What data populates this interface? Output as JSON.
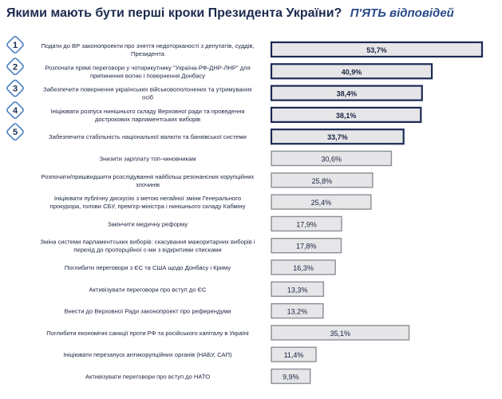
{
  "header": {
    "title": "Якими мають бути перші кроки Президента України?",
    "subtitle": "П'ЯТЬ відповідей"
  },
  "colors": {
    "bar_fill": "#e6e6e8",
    "bar_border_top": "#1b2a55",
    "bar_border": "#8a8e96",
    "badge": "#4a7fc1",
    "text": "#1a2340"
  },
  "chart_data": {
    "type": "bar",
    "orientation": "horizontal",
    "title": "Якими мають бути перші кроки Президента України?",
    "subtitle": "П'ЯТЬ відповідей",
    "categories": [
      "Подати до ВР законопроекти про зняття недоторканості з депутатів, суддів, Президента",
      "Розпочати прямі переговори у чотирикутнику \"Україна-РФ-ДНР-ЛНР\" для припинення вогню і повернення Донбасу",
      "Забезпечити повернення українських військовополонених та утримуваних осіб",
      "Ініціювати розпуск нинішнього складу Верховної ради та проведення дострокових парламентських виборів",
      "Забезпечити стабільність національної валюти та банківської системи",
      "Знизити зарплату топ-чиновникам",
      "Розпочати/пришвидшити розслідування найбільш резонансних корупційних злочинів",
      "Ініціювати публічну дискусію з метою негайної зміни Генерального прокурора, голови СБУ, прем'єр-міністра і нинішнього складу Кабміну",
      "Закінчити медичну реформу",
      "Зміна системи парламентських виборів: скасування мажоритарних виборів і перехід до пропорційної с-ми з відкритими списками",
      "Поглибити переговори з ЄС та США щодо Донбасу і Криму",
      "Активізувати переговори про вступ до ЄС",
      "Внести до Верховної Ради законопроект про референдуми",
      "Поглибити економічні санкції проти РФ та російського капіталу в Україні",
      "Ініціювати перезапуск антикорупційних органів (НАБУ, САП)",
      "Активізувати переговори про вступ до НАТО"
    ],
    "label_lines": [
      [
        "Подати до ВР законопроекти про зняття недоторканості з депутатів, суддів,",
        "Президента"
      ],
      [
        "Розпочати прямі переговори у чотирикутнику \"Україна-РФ-ДНР-ЛНР\" для",
        "припинення вогню і повернення Донбасу"
      ],
      [
        "Забезпечити повернення українських військовополонених та утримуваних",
        "осіб"
      ],
      [
        "Ініціювати розпуск нинішнього складу Верховної ради та проведення",
        "дострокових парламентських виборів"
      ],
      [
        "Забезпечити стабільність національної валюти та банківської системи"
      ],
      [
        "Знизити зарплату топ-чиновникам"
      ],
      [
        "Розпочати/пришвидшити розслідування найбільш резонансних корупційних",
        "злочинів"
      ],
      [
        "Ініціювати публічну дискусію з метою негайної зміни Генерального",
        "прокурора, голови СБУ, прем'єр-міністра і нинішнього складу Кабміну"
      ],
      [
        "Закінчити медичну реформу"
      ],
      [
        "Зміна системи парламентських виборів: скасування мажоритарних виборів і",
        "перехід до пропорційної с-ми з відкритими списками"
      ],
      [
        "Поглибити переговори з ЄС та США щодо Донбасу і Криму"
      ],
      [
        "Активізувати переговори про вступ до ЄС"
      ],
      [
        "Внести до Верховної Ради законопроект про референдуми"
      ],
      [
        "Поглибити економічні санкції проти РФ та російського капіталу в Україні"
      ],
      [
        "Ініціювати перезапуск антикорупційних органів (НАБУ, САП)"
      ],
      [
        "Активізувати переговори про вступ до НАТО"
      ]
    ],
    "values": [
      53.7,
      40.9,
      38.4,
      38.1,
      33.7,
      30.6,
      25.8,
      25.4,
      17.9,
      17.8,
      16.3,
      13.3,
      13.2,
      35.1,
      11.4,
      9.9
    ],
    "value_labels": [
      "53,7%",
      "40,9%",
      "38,4%",
      "38,1%",
      "33,7%",
      "30,6%",
      "25,8%",
      "25,4%",
      "17,9%",
      "17,8%",
      "16,3%",
      "13,3%",
      "13,2%",
      "35,1%",
      "11,4%",
      "9,9%"
    ],
    "rank_badges": [
      "1",
      "2",
      "3",
      "4",
      "5"
    ],
    "highlighted_top": 5,
    "unit": "%",
    "xlim": [
      0,
      53.7
    ],
    "grid": false,
    "legend": "none"
  }
}
